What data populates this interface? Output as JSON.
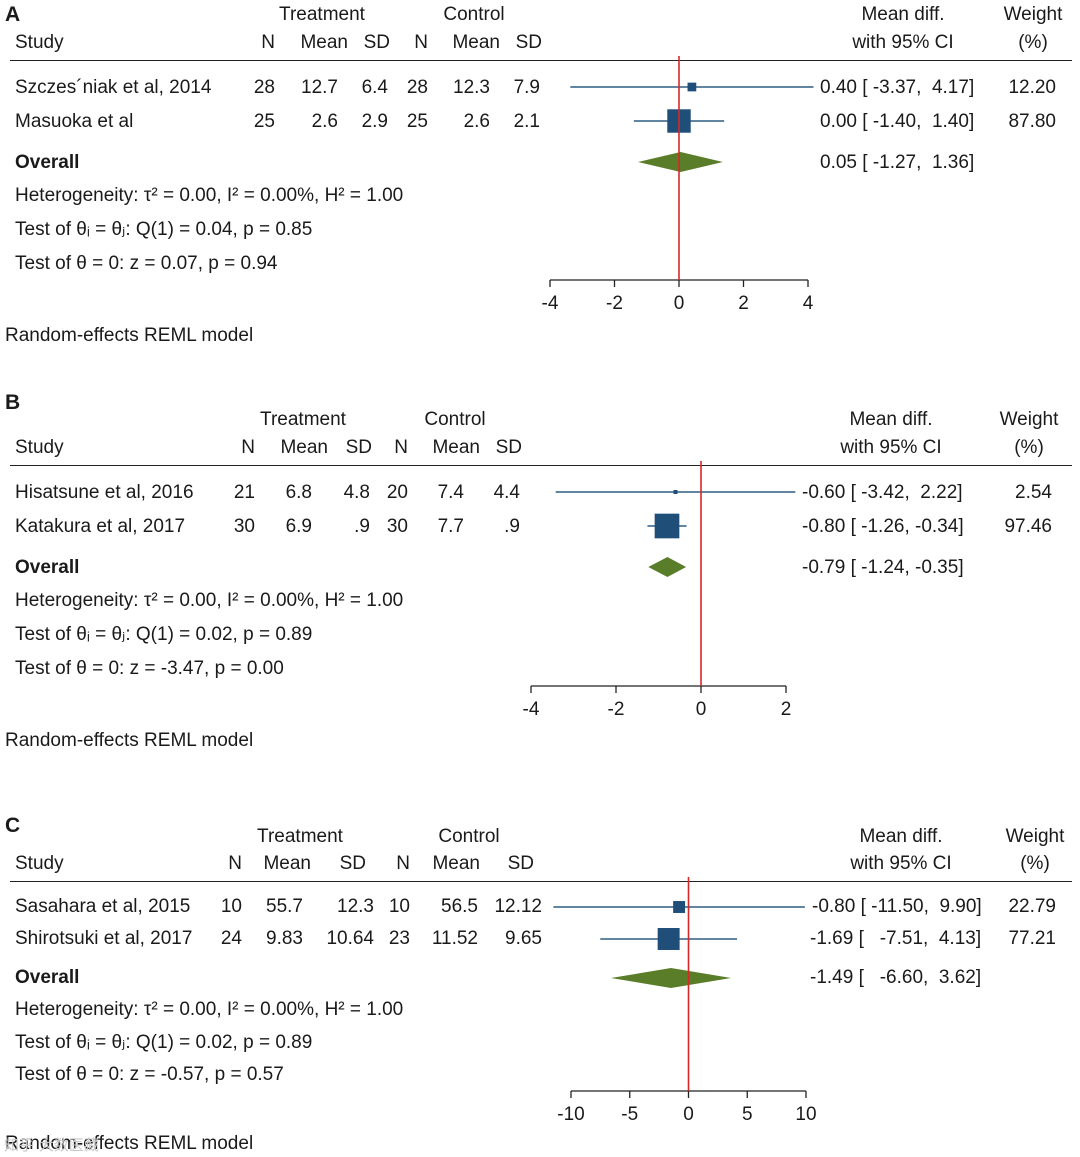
{
  "chart_data": [
    {
      "type": "forest",
      "panel": "A",
      "group_headers": [
        "Treatment",
        "Control"
      ],
      "columns": [
        "Study",
        "N",
        "Mean",
        "SD",
        "N",
        "Mean",
        "SD"
      ],
      "ci_header": [
        "Mean diff.",
        "with 95% CI"
      ],
      "weight_header": [
        "Weight",
        "(%)"
      ],
      "studies": [
        {
          "study": "Szczes´niak et al, 2014",
          "t_n": "28",
          "t_mean": "12.7",
          "t_sd": "6.4",
          "c_n": "28",
          "c_mean": "12.3",
          "c_sd": "7.9",
          "est": 0.4,
          "lo": -3.37,
          "hi": 4.17,
          "ci_text": "0.40 [ -3.37,  4.17]",
          "weight": 12.2,
          "weight_text": "12.20"
        },
        {
          "study": "Masuoka et al",
          "t_n": "25",
          "t_mean": "2.6",
          "t_sd": "2.9",
          "c_n": "25",
          "c_mean": "2.6",
          "c_sd": "2.1",
          "est": 0.0,
          "lo": -1.4,
          "hi": 1.4,
          "ci_text": "0.00 [ -1.40,  1.40]",
          "weight": 87.8,
          "weight_text": "87.80"
        }
      ],
      "overall": {
        "label": "Overall",
        "est": 0.05,
        "lo": -1.27,
        "hi": 1.36,
        "ci_text": "0.05 [ -1.27,  1.36]"
      },
      "stats": [
        "Heterogeneity: τ² = 0.00, I² = 0.00%, H² = 1.00",
        "Test of θᵢ = θⱼ: Q(1) = 0.04, p = 0.85",
        "Test of θ = 0: z = 0.07, p = 0.94"
      ],
      "xlim": [
        -4,
        4
      ],
      "ticks": [
        -4,
        -2,
        0,
        2,
        4
      ],
      "tick_labels": [
        "-4",
        "-2",
        "0",
        "2",
        "4"
      ],
      "model": "Random-effects REML model"
    },
    {
      "type": "forest",
      "panel": "B",
      "group_headers": [
        "Treatment",
        "Control"
      ],
      "columns": [
        "Study",
        "N",
        "Mean",
        "SD",
        "N",
        "Mean",
        "SD"
      ],
      "ci_header": [
        "Mean diff.",
        "with 95% CI"
      ],
      "weight_header": [
        "Weight",
        "(%)"
      ],
      "studies": [
        {
          "study": "Hisatsune et al, 2016",
          "t_n": "21",
          "t_mean": "6.8",
          "t_sd": "4.8",
          "c_n": "20",
          "c_mean": "7.4",
          "c_sd": "4.4",
          "est": -0.6,
          "lo": -3.42,
          "hi": 2.22,
          "ci_text": "-0.60 [ -3.42,  2.22]",
          "weight": 2.54,
          "weight_text": "2.54"
        },
        {
          "study": "Katakura et al, 2017",
          "t_n": "30",
          "t_mean": "6.9",
          "t_sd": ".9",
          "c_n": "30",
          "c_mean": "7.7",
          "c_sd": ".9",
          "est": -0.8,
          "lo": -1.26,
          "hi": -0.34,
          "ci_text": "-0.80 [ -1.26, -0.34]",
          "weight": 97.46,
          "weight_text": "97.46"
        }
      ],
      "overall": {
        "label": "Overall",
        "est": -0.79,
        "lo": -1.24,
        "hi": -0.35,
        "ci_text": "-0.79 [ -1.24, -0.35]"
      },
      "stats": [
        "Heterogeneity: τ² = 0.00, I² = 0.00%, H² = 1.00",
        "Test of θᵢ = θⱼ: Q(1) = 0.02, p = 0.89",
        "Test of θ = 0: z = -3.47, p = 0.00"
      ],
      "xlim": [
        -4,
        2
      ],
      "ticks": [
        -4,
        -2,
        0,
        2
      ],
      "tick_labels": [
        "-4",
        "-2",
        "0",
        "2"
      ],
      "model": "Random-effects REML model"
    },
    {
      "type": "forest",
      "panel": "C",
      "group_headers": [
        "Treatment",
        "Control"
      ],
      "columns": [
        "Study",
        "N",
        "Mean",
        "SD",
        "N",
        "Mean",
        "SD"
      ],
      "ci_header": [
        "Mean diff.",
        "with 95% CI"
      ],
      "weight_header": [
        "Weight",
        "(%)"
      ],
      "studies": [
        {
          "study": "Sasahara et al, 2015",
          "t_n": "10",
          "t_mean": "55.7",
          "t_sd": "12.3",
          "c_n": "10",
          "c_mean": "56.5",
          "c_sd": "12.12",
          "est": -0.8,
          "lo": -11.5,
          "hi": 9.9,
          "ci_text": "-0.80 [ -11.50,  9.90]",
          "weight": 22.79,
          "weight_text": "22.79"
        },
        {
          "study": "Shirotsuki et al, 2017",
          "t_n": "24",
          "t_mean": "9.83",
          "t_sd": "10.64",
          "c_n": "23",
          "c_mean": "11.52",
          "c_sd": "9.65",
          "est": -1.69,
          "lo": -7.51,
          "hi": 4.13,
          "ci_text": "-1.69 [   -7.51,  4.13]",
          "weight": 77.21,
          "weight_text": "77.21"
        }
      ],
      "overall": {
        "label": "Overall",
        "est": -1.49,
        "lo": -6.6,
        "hi": 3.62,
        "ci_text": "-1.49 [   -6.60,  3.62]"
      },
      "stats": [
        "Heterogeneity: τ² = 0.00, I² = 0.00%, H² = 1.00",
        "Test of θᵢ = θⱼ: Q(1) = 0.02, p = 0.89",
        "Test of θ = 0: z = -0.57, p = 0.57"
      ],
      "xlim": [
        -10,
        10
      ],
      "ticks": [
        -10,
        -5,
        0,
        5,
        10
      ],
      "tick_labels": [
        "-10",
        "-5",
        "0",
        "5",
        "10"
      ],
      "model": "Random-effects REML model"
    }
  ],
  "colors": {
    "marker": "#1f4e79",
    "ci_line": "#2f5d84",
    "diamond": "#5a7d2a",
    "null_line": "#d62828",
    "text": "#1a1a1a"
  },
  "watermark": "知乎 大数医藏"
}
